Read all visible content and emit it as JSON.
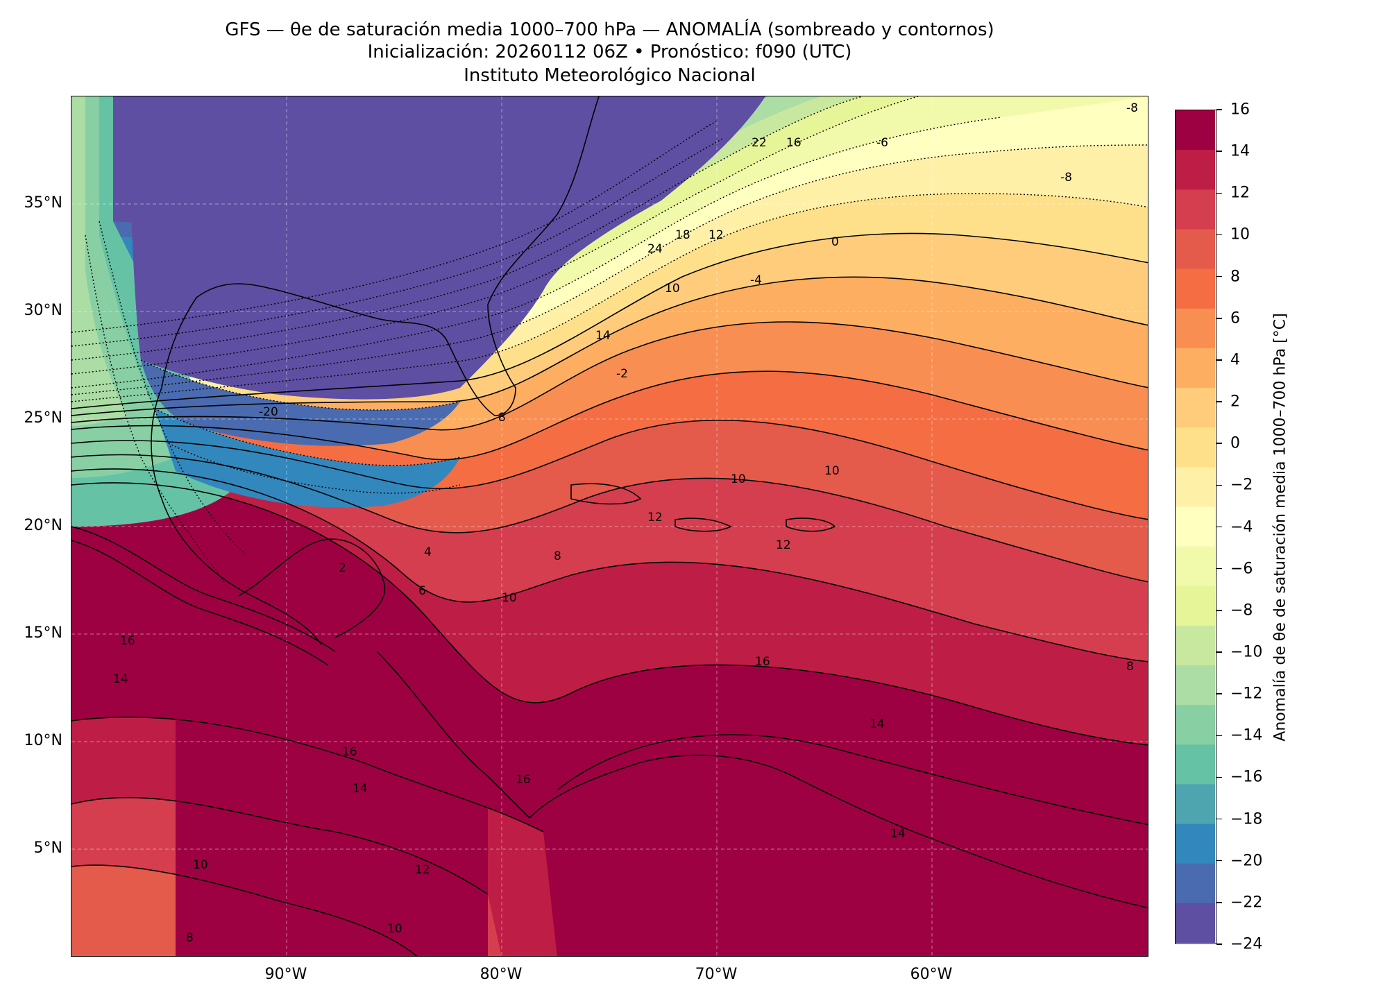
{
  "title": {
    "line1": "GFS — θe de saturación media 1000–700 hPa — ANOMALÍA (sombreado y contornos)",
    "line2": "Inicialización: 20260112 06Z   •   Pronóstico: f090 (UTC)",
    "line3": "Instituto Meteorológico Nacional"
  },
  "map": {
    "lon_range": [
      -100,
      -50
    ],
    "lat_range": [
      0,
      40
    ],
    "lat_ticks": [
      "35°N",
      "30°N",
      "25°N",
      "20°N",
      "15°N",
      "10°N",
      "5°N"
    ],
    "lon_ticks": [
      "90°W",
      "80°W",
      "70°W",
      "60°W"
    ],
    "contour_labels": [
      "22",
      "16",
      "-6",
      "-8",
      "24",
      "18",
      "12",
      "0",
      "10",
      "-4",
      "14",
      "-2",
      "-20",
      "8",
      "2",
      "4",
      "6",
      "10",
      "12",
      "8",
      "12",
      "10",
      "16",
      "14",
      "16",
      "14",
      "10",
      "12",
      "10",
      "8",
      "10",
      "16",
      "16",
      "14",
      "8",
      "-8",
      "14"
    ]
  },
  "colorbar": {
    "title": "Anomalía de θe de saturación media 1000–700 hPa [°C]",
    "ticks": [
      "16",
      "14",
      "12",
      "10",
      "8",
      "6",
      "4",
      "2",
      "0",
      "−2",
      "−4",
      "−6",
      "−8",
      "−10",
      "−12",
      "−14",
      "−16",
      "−18",
      "−20",
      "−22",
      "−24"
    ],
    "colors": [
      "#9e0142",
      "#be1e45",
      "#d53e4f",
      "#e45a4b",
      "#f46d43",
      "#f98e52",
      "#fdae61",
      "#fecc7b",
      "#fee08b",
      "#fff0a8",
      "#ffffbf",
      "#f1f9aa",
      "#e6f598",
      "#c7e89e",
      "#abdda4",
      "#88cfa4",
      "#66c2a5",
      "#4ea5b0",
      "#3288bd",
      "#4a6baf",
      "#5e4fa2"
    ]
  }
}
